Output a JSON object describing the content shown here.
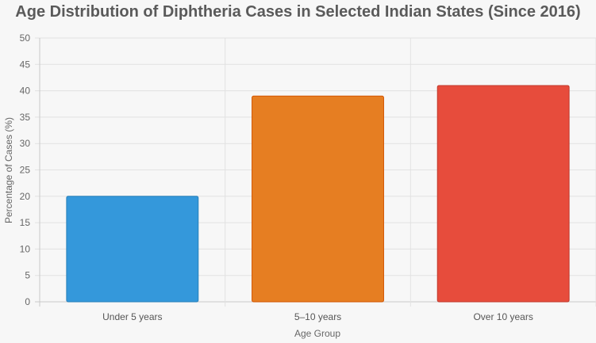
{
  "chart_data": {
    "type": "bar",
    "title": "Age Distribution of Diphtheria Cases in Selected Indian States (Since 2016)",
    "xlabel": "Age Group",
    "ylabel": "Percentage of Cases (%)",
    "categories": [
      "Under 5 years",
      "5–10 years",
      "Over 10 years"
    ],
    "values": [
      20,
      39,
      41
    ],
    "colors": [
      "#3498db",
      "#e67e22",
      "#e74c3c"
    ],
    "border_colors": [
      "#2980b9",
      "#d35400",
      "#c0392b"
    ],
    "ylim": [
      0,
      50
    ],
    "ytick_step": 5,
    "grid": true,
    "legend": "none"
  }
}
